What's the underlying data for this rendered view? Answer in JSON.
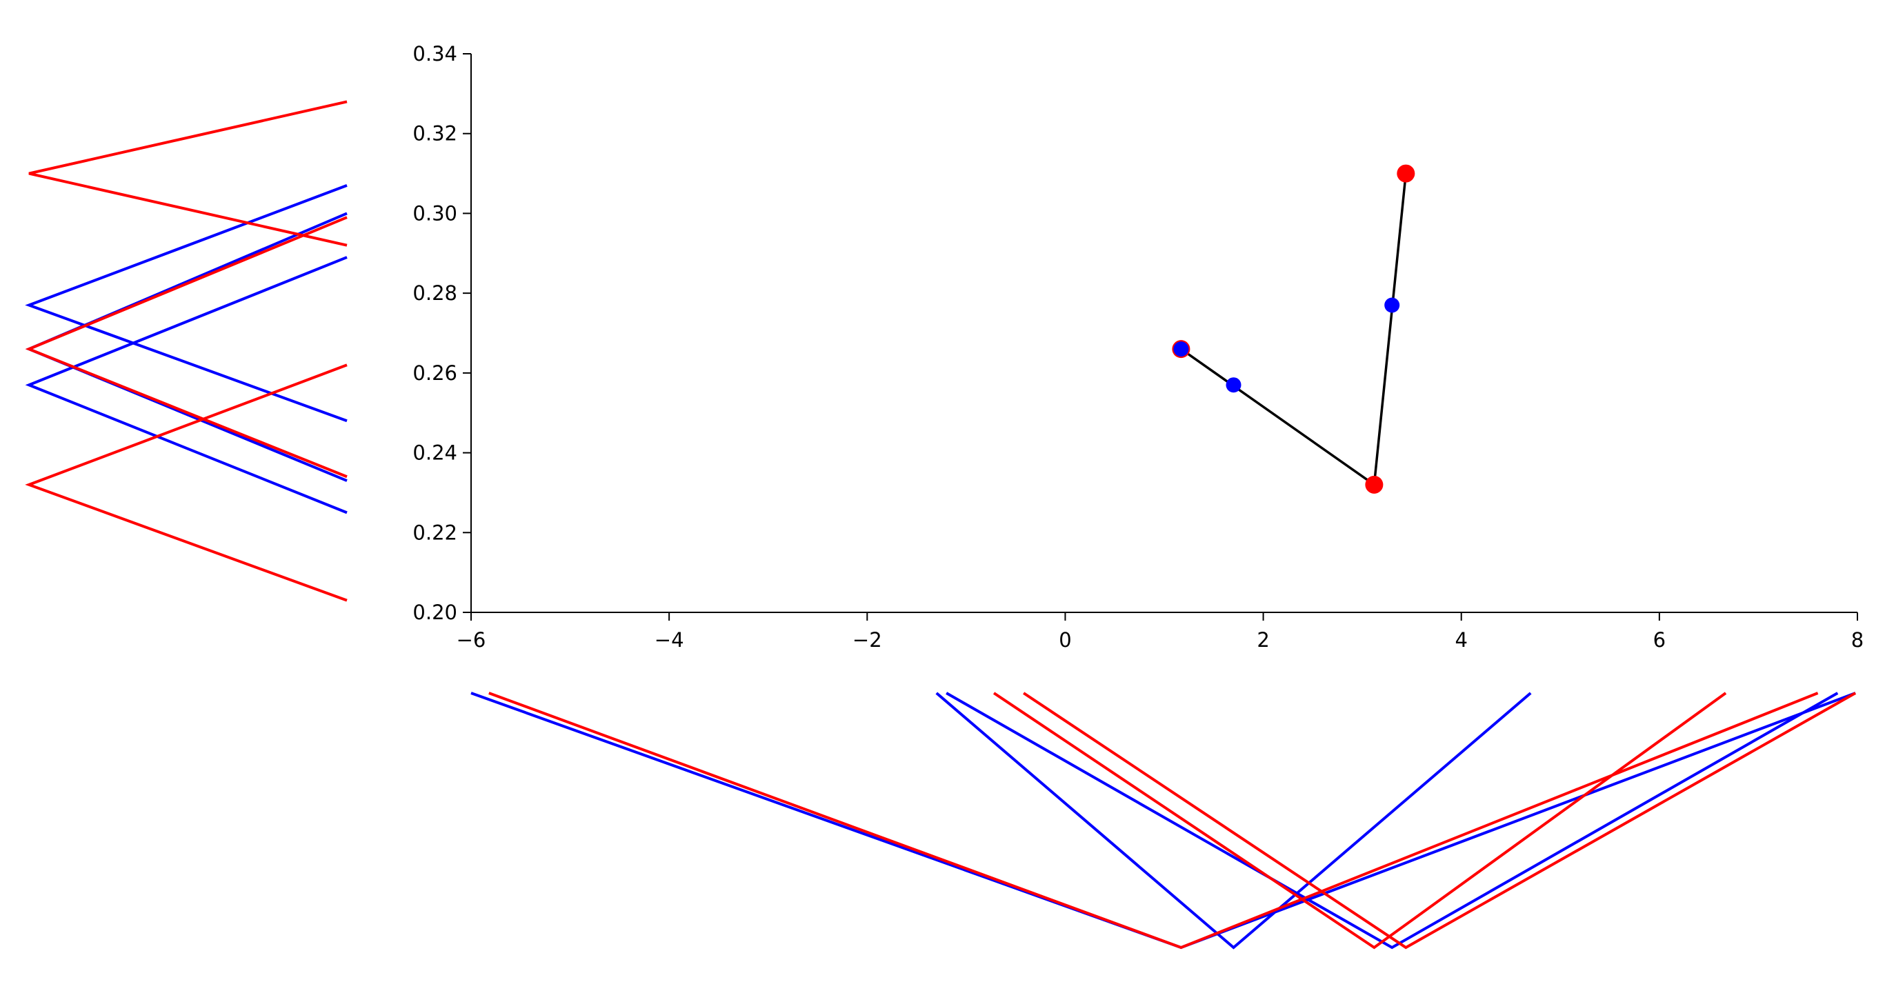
{
  "chart_data": {
    "type": "line",
    "title": "",
    "xlabel": "",
    "ylabel": "",
    "xlim": [
      -6,
      8
    ],
    "ylim": [
      0.2,
      0.34
    ],
    "x_ticks": [
      -6,
      -4,
      -2,
      0,
      2,
      4,
      6,
      8
    ],
    "x_tick_labels": [
      "−6",
      "−4",
      "−2",
      "0",
      "2",
      "4",
      "6",
      "8"
    ],
    "y_ticks": [
      0.2,
      0.22,
      0.24,
      0.26,
      0.28,
      0.3,
      0.32,
      0.34
    ],
    "y_tick_labels": [
      "0.20",
      "0.22",
      "0.24",
      "0.26",
      "0.28",
      "0.30",
      "0.32",
      "0.34"
    ],
    "grid": false,
    "spines": [
      "left",
      "bottom"
    ],
    "colors": {
      "red": "#ff0000",
      "blue": "#0000ff",
      "path": "#000000"
    },
    "path": {
      "x": [
        1.17,
        3.12,
        3.44
      ],
      "y": [
        0.266,
        0.232,
        0.31
      ]
    },
    "red_points": {
      "x": [
        1.17,
        3.12,
        3.44
      ],
      "y": [
        0.266,
        0.232,
        0.31
      ]
    },
    "blue_points": {
      "x": [
        1.7,
        3.3,
        1.17
      ],
      "y": [
        0.257,
        0.277,
        0.266
      ]
    },
    "side_panel_left": {
      "description_hidden": true,
      "red_fans": [
        {
          "apex_y": 0.31,
          "ends": [
            0.328,
            0.292
          ]
        },
        {
          "apex_y": 0.266,
          "ends": [
            0.299,
            0.234
          ]
        },
        {
          "apex_y": 0.232,
          "ends": [
            0.262,
            0.203
          ]
        }
      ],
      "blue_fans": [
        {
          "apex_y": 0.277,
          "ends": [
            0.307,
            0.248
          ]
        },
        {
          "apex_y": 0.266,
          "ends": [
            0.3,
            0.233
          ]
        },
        {
          "apex_y": 0.257,
          "ends": [
            0.289,
            0.225
          ]
        }
      ]
    },
    "side_panel_bottom": {
      "red_vs": [
        {
          "apex_x": 1.17,
          "ends": [
            -5.82,
            7.6
          ]
        },
        {
          "apex_x": 3.12,
          "ends": [
            -0.72,
            6.67
          ]
        },
        {
          "apex_x": 3.44,
          "ends": [
            -0.42,
            7.98
          ]
        }
      ],
      "blue_vs": [
        {
          "apex_x": 1.7,
          "ends": [
            -1.3,
            4.7
          ]
        },
        {
          "apex_x": 3.3,
          "ends": [
            -1.2,
            7.8
          ]
        },
        {
          "apex_x": 1.17,
          "ends": [
            -6.0,
            7.98
          ]
        }
      ]
    }
  }
}
